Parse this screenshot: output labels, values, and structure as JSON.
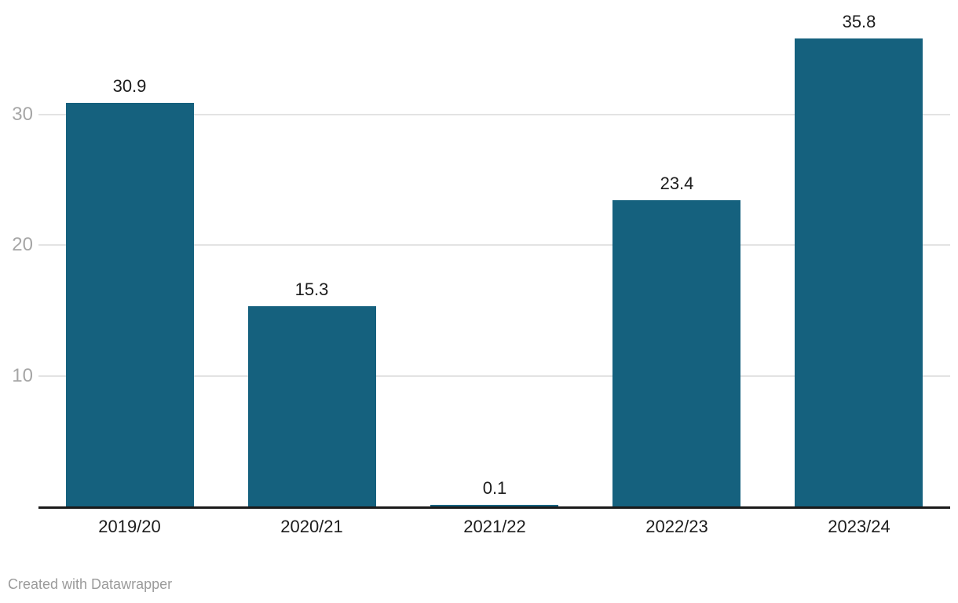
{
  "chart_data": {
    "type": "bar",
    "categories": [
      "2019/20",
      "2020/21",
      "2021/22",
      "2022/23",
      "2023/24"
    ],
    "values": [
      30.9,
      15.3,
      0.1,
      23.4,
      35.8
    ],
    "value_labels": [
      "30.9",
      "15.3",
      "0.1",
      "23.4",
      "35.8"
    ],
    "title": "",
    "xlabel": "",
    "ylabel": "",
    "yticks": [
      10,
      20,
      30
    ],
    "ytick_labels": [
      "10",
      "20",
      "30"
    ],
    "ylim": [
      0,
      37.5
    ],
    "grid": "on",
    "legend": "none",
    "bar_color": "#15617e",
    "grid_color": "#e3e3e3",
    "baseline_color": "#1a1a1a",
    "tick_label_color": "#a6a6a6",
    "value_label_color": "#1d1d1d",
    "category_label_color": "#1d1d1d"
  },
  "footer": {
    "credit": "Created with Datawrapper",
    "credit_color": "#9b9b9b"
  }
}
